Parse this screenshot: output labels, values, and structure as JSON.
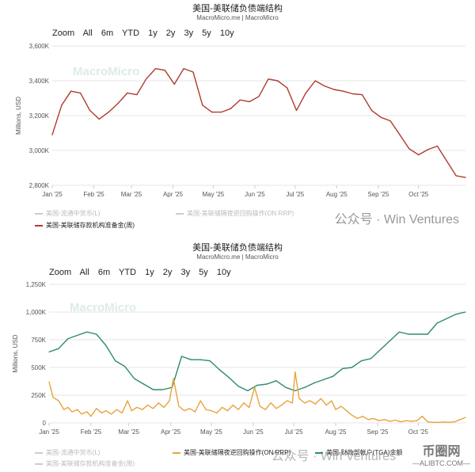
{
  "panel1": {
    "title": "美国-美联储负债端结构",
    "subtitle": "MacroMicro.me | MacroMicro",
    "zoom": {
      "label": "Zoom",
      "options": [
        "All",
        "6m",
        "YTD",
        "1y",
        "2y",
        "3y",
        "5y",
        "10y"
      ]
    },
    "brand_watermark": "MacroMicro",
    "legend": [
      {
        "name": "美国-流通中货币(L)",
        "color": "#bbbbbb",
        "active": false
      },
      {
        "name": "美国-美联储隔夜逆回购操作(ON RRP)",
        "color": "#bbbbbb",
        "active": false
      },
      {
        "name": "美国-美联储存款机构准备金(周)",
        "color": "#b03a2e",
        "active": true
      }
    ],
    "watermark_text": "公众号 · Win Ventures"
  },
  "panel2": {
    "title": "美国-美联储负债端结构",
    "subtitle": "MacroMicro.me | MacroMicro",
    "zoom": {
      "label": "Zoom",
      "options": [
        "All",
        "6m",
        "YTD",
        "1y",
        "2y",
        "3y",
        "5y",
        "10y"
      ]
    },
    "brand_watermark": "MacroMicro",
    "legend": [
      {
        "name": "美国-流通中货币(L)",
        "color": "#bbbbbb",
        "active": false
      },
      {
        "name": "美国-美联储存款机构准备金(周)",
        "color": "#bbbbbb",
        "active": false
      },
      {
        "name": "美国-美联储隔夜逆回购操作(ON RRP)",
        "color": "#e8a33d",
        "active": true
      },
      {
        "name": "美国-财政部帐户(TGA)余额",
        "color": "#2e8b6a",
        "active": true
      }
    ],
    "watermark_text": "公众号 · Win Ventures",
    "stamp": {
      "line1": "币圈网",
      "line2": "—ALIBTC.COM—"
    }
  },
  "chart_data": [
    {
      "type": "line",
      "title": "美国-美联储负债端结构",
      "ylabel": "Millions, USD",
      "ylim": [
        2800,
        3600
      ],
      "yticks": [
        2800,
        3000,
        3200,
        3400,
        3600
      ],
      "ytick_labels": [
        "2,800K",
        "3,000K",
        "3,200K",
        "3,400K",
        "3,600K"
      ],
      "xlim": [
        "2025-01-01",
        "2025-11-05"
      ],
      "xticks": [
        "2025-01-01",
        "2025-02-01",
        "2025-03-01",
        "2025-04-01",
        "2025-05-01",
        "2025-06-01",
        "2025-07-01",
        "2025-08-01",
        "2025-09-01",
        "2025-10-01"
      ],
      "xtick_labels": [
        "Jan '25",
        "Feb '25",
        "Mar '25",
        "Apr '25",
        "May '25",
        "Jun '25",
        "Jul '25",
        "Aug '25",
        "Sep '25",
        "Oct '25"
      ],
      "series": [
        {
          "name": "美国-美联储存款机构准备金(周)",
          "color": "#b03a2e",
          "x": [
            "2025-01-01",
            "2025-01-08",
            "2025-01-15",
            "2025-01-22",
            "2025-01-29",
            "2025-02-05",
            "2025-02-12",
            "2025-02-19",
            "2025-02-26",
            "2025-03-05",
            "2025-03-12",
            "2025-03-19",
            "2025-03-26",
            "2025-04-02",
            "2025-04-09",
            "2025-04-16",
            "2025-04-23",
            "2025-04-30",
            "2025-05-07",
            "2025-05-14",
            "2025-05-21",
            "2025-05-28",
            "2025-06-04",
            "2025-06-11",
            "2025-06-18",
            "2025-06-25",
            "2025-07-02",
            "2025-07-09",
            "2025-07-16",
            "2025-07-23",
            "2025-07-30",
            "2025-08-06",
            "2025-08-13",
            "2025-08-20",
            "2025-08-27",
            "2025-09-03",
            "2025-09-10",
            "2025-09-17",
            "2025-09-24",
            "2025-10-01",
            "2025-10-08",
            "2025-10-15",
            "2025-10-22",
            "2025-10-29",
            "2025-11-05"
          ],
          "values": [
            3090,
            3260,
            3340,
            3330,
            3230,
            3180,
            3220,
            3270,
            3330,
            3320,
            3410,
            3470,
            3460,
            3380,
            3470,
            3450,
            3260,
            3220,
            3220,
            3240,
            3290,
            3280,
            3310,
            3410,
            3400,
            3360,
            3230,
            3330,
            3400,
            3370,
            3350,
            3340,
            3325,
            3320,
            3230,
            3190,
            3170,
            3090,
            3010,
            2975,
            3005,
            3025,
            2940,
            2855,
            2845
          ]
        }
      ]
    },
    {
      "type": "line",
      "title": "美国-美联储负债端结构",
      "ylabel": "Millions, USD",
      "ylim": [
        0,
        1250
      ],
      "yticks": [
        0,
        250,
        500,
        750,
        1000,
        1250
      ],
      "ytick_labels": [
        "0",
        "250K",
        "500K",
        "750K",
        "1,000K",
        "1,250K"
      ],
      "xlim": [
        "2025-01-01",
        "2025-11-05"
      ],
      "xticks": [
        "2025-01-01",
        "2025-02-01",
        "2025-03-01",
        "2025-04-01",
        "2025-05-01",
        "2025-06-01",
        "2025-07-01",
        "2025-08-01",
        "2025-09-01",
        "2025-10-01"
      ],
      "xtick_labels": [
        "Jan '25",
        "Feb '25",
        "Mar '25",
        "Apr '25",
        "May '25",
        "Jun '25",
        "Jul '25",
        "Aug '25",
        "Sep '25",
        "Oct '25"
      ],
      "series": [
        {
          "name": "美国-财政部帐户(TGA)余额",
          "color": "#2e8b6a",
          "x": [
            "2025-01-01",
            "2025-01-08",
            "2025-01-15",
            "2025-01-22",
            "2025-01-29",
            "2025-02-05",
            "2025-02-12",
            "2025-02-19",
            "2025-02-26",
            "2025-03-05",
            "2025-03-12",
            "2025-03-19",
            "2025-03-26",
            "2025-04-02",
            "2025-04-09",
            "2025-04-16",
            "2025-04-23",
            "2025-04-30",
            "2025-05-07",
            "2025-05-14",
            "2025-05-21",
            "2025-05-28",
            "2025-06-04",
            "2025-06-11",
            "2025-06-18",
            "2025-06-25",
            "2025-07-02",
            "2025-07-09",
            "2025-07-16",
            "2025-07-23",
            "2025-07-30",
            "2025-08-06",
            "2025-08-13",
            "2025-08-20",
            "2025-08-27",
            "2025-09-03",
            "2025-09-10",
            "2025-09-17",
            "2025-09-24",
            "2025-10-01",
            "2025-10-08",
            "2025-10-15",
            "2025-10-22",
            "2025-10-29",
            "2025-11-05"
          ],
          "values": [
            640,
            670,
            760,
            790,
            820,
            800,
            700,
            560,
            510,
            400,
            350,
            300,
            300,
            320,
            600,
            570,
            570,
            560,
            480,
            410,
            330,
            290,
            340,
            350,
            380,
            320,
            290,
            320,
            360,
            390,
            420,
            490,
            500,
            560,
            580,
            660,
            740,
            820,
            800,
            800,
            800,
            900,
            940,
            980,
            1000
          ]
        },
        {
          "name": "美国-美联储隔夜逆回购操作(ON RRP)",
          "color": "#e8a33d",
          "x": [
            "2025-01-01",
            "2025-01-04",
            "2025-01-08",
            "2025-01-12",
            "2025-01-15",
            "2025-01-18",
            "2025-01-22",
            "2025-01-25",
            "2025-01-29",
            "2025-02-01",
            "2025-02-05",
            "2025-02-09",
            "2025-02-12",
            "2025-02-16",
            "2025-02-20",
            "2025-02-24",
            "2025-02-28",
            "2025-03-03",
            "2025-03-07",
            "2025-03-11",
            "2025-03-15",
            "2025-03-19",
            "2025-03-23",
            "2025-03-27",
            "2025-03-31",
            "2025-04-03",
            "2025-04-07",
            "2025-04-11",
            "2025-04-15",
            "2025-04-19",
            "2025-04-23",
            "2025-04-27",
            "2025-05-01",
            "2025-05-05",
            "2025-05-09",
            "2025-05-13",
            "2025-05-17",
            "2025-05-21",
            "2025-05-25",
            "2025-05-29",
            "2025-06-02",
            "2025-06-06",
            "2025-06-10",
            "2025-06-14",
            "2025-06-18",
            "2025-06-22",
            "2025-06-26",
            "2025-06-30",
            "2025-07-02",
            "2025-07-05",
            "2025-07-09",
            "2025-07-13",
            "2025-07-17",
            "2025-07-21",
            "2025-07-25",
            "2025-07-29",
            "2025-08-01",
            "2025-08-05",
            "2025-08-09",
            "2025-08-13",
            "2025-08-17",
            "2025-08-21",
            "2025-08-25",
            "2025-08-29",
            "2025-09-02",
            "2025-09-06",
            "2025-09-10",
            "2025-09-14",
            "2025-09-18",
            "2025-09-22",
            "2025-09-26",
            "2025-09-30",
            "2025-10-04",
            "2025-10-08",
            "2025-10-12",
            "2025-10-16",
            "2025-10-20",
            "2025-10-24",
            "2025-10-28",
            "2025-11-01",
            "2025-11-05"
          ],
          "values": [
            370,
            230,
            200,
            120,
            140,
            100,
            120,
            80,
            100,
            60,
            130,
            90,
            110,
            80,
            120,
            90,
            200,
            110,
            140,
            120,
            160,
            130,
            180,
            140,
            200,
            400,
            150,
            110,
            130,
            100,
            200,
            120,
            110,
            90,
            140,
            110,
            160,
            120,
            180,
            140,
            320,
            150,
            120,
            180,
            130,
            160,
            200,
            180,
            460,
            220,
            180,
            200,
            170,
            220,
            160,
            200,
            120,
            150,
            110,
            70,
            40,
            60,
            30,
            40,
            20,
            30,
            15,
            25,
            10,
            20,
            15,
            20,
            60,
            10,
            5,
            5,
            8,
            6,
            10,
            30,
            50
          ]
        }
      ]
    }
  ]
}
